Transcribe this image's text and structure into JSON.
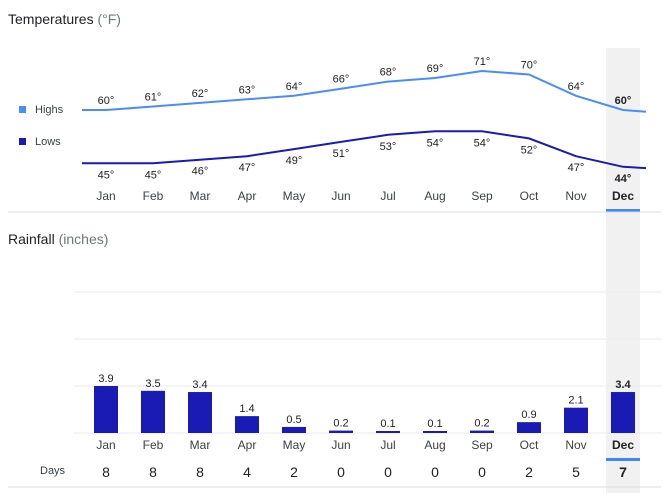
{
  "temperatures": {
    "title": "Temperatures",
    "unit": "(°F)",
    "legend": {
      "highs": "Highs",
      "lows": "Lows"
    }
  },
  "rainfall": {
    "title": "Rainfall",
    "unit": "(inches)"
  },
  "days": {
    "label": "Days"
  },
  "selected_month": "Dec",
  "colors": {
    "highs": "#4a8df8",
    "lows": "#1a1ab4",
    "bars": "#1a1ab4",
    "selected_band": "#f1f1f1",
    "selected_underline": "#4285f4",
    "grid": "#e8eaed",
    "separator": "#dadce0"
  },
  "chart_data": [
    {
      "type": "line",
      "title": "Temperatures (°F)",
      "categories": [
        "Jan",
        "Feb",
        "Mar",
        "Apr",
        "May",
        "Jun",
        "Jul",
        "Aug",
        "Sep",
        "Oct",
        "Nov",
        "Dec"
      ],
      "series": [
        {
          "name": "Highs",
          "values": [
            60,
            61,
            62,
            63,
            64,
            66,
            68,
            69,
            71,
            70,
            64,
            60
          ],
          "labels": [
            "60°",
            "61°",
            "62°",
            "63°",
            "64°",
            "66°",
            "68°",
            "69°",
            "71°",
            "70°",
            "64°",
            "60°"
          ]
        },
        {
          "name": "Lows",
          "values": [
            45,
            45,
            46,
            47,
            49,
            51,
            53,
            54,
            54,
            52,
            47,
            44
          ],
          "labels": [
            "45°",
            "45°",
            "46°",
            "47°",
            "49°",
            "51°",
            "53°",
            "54°",
            "54°",
            "52°",
            "47°",
            "44°"
          ]
        }
      ]
    },
    {
      "type": "bar",
      "title": "Rainfall (inches)",
      "categories": [
        "Jan",
        "Feb",
        "Mar",
        "Apr",
        "May",
        "Jun",
        "Jul",
        "Aug",
        "Sep",
        "Oct",
        "Nov",
        "Dec"
      ],
      "values": [
        3.9,
        3.5,
        3.4,
        1.4,
        0.5,
        0.2,
        0.1,
        0.1,
        0.2,
        0.9,
        2.1,
        3.4
      ],
      "labels": [
        "3.9",
        "3.5",
        "3.4",
        "1.4",
        "0.5",
        "0.2",
        "0.1",
        "0.1",
        "0.2",
        "0.9",
        "2.1",
        "3.4"
      ],
      "ylim": [
        0,
        14
      ]
    },
    {
      "type": "table",
      "title": "Days",
      "categories": [
        "Jan",
        "Feb",
        "Mar",
        "Apr",
        "May",
        "Jun",
        "Jul",
        "Aug",
        "Sep",
        "Oct",
        "Nov",
        "Dec"
      ],
      "values": [
        "8",
        "8",
        "8",
        "4",
        "2",
        "0",
        "0",
        "0",
        "0",
        "2",
        "5",
        "7"
      ]
    }
  ]
}
